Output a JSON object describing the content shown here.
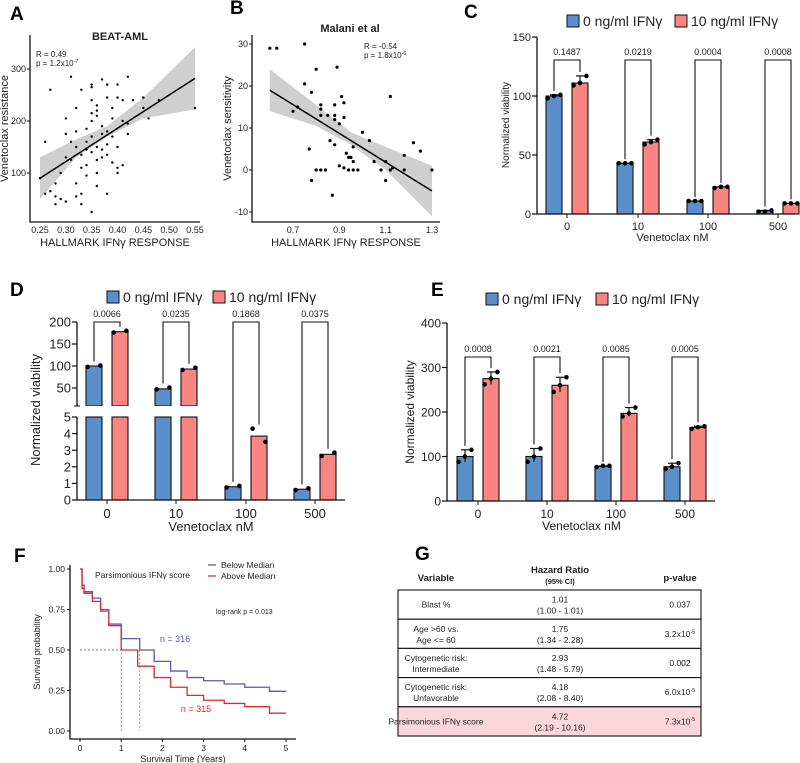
{
  "panels": {
    "A": "A",
    "B": "B",
    "C": "C",
    "D": "D",
    "E": "E",
    "F": "F",
    "G": "G"
  },
  "colors": {
    "blue": "#5b8fcc",
    "red": "#f98583",
    "band": "#cfcfcf",
    "km_blue": "#5a5aaa",
    "km_red": "#dd2b2b",
    "highlight": "#fbd6dd"
  },
  "chart_data": [
    {
      "id": "A",
      "type": "scatter",
      "title": "BEAT-AML",
      "xlabel": "HALLMARK IFNγ  RESPONSE",
      "ylabel": "Venetoclax resistance",
      "annotation": {
        "r": "R = 0.49",
        "p": "p = 1.2x10",
        "p_exp": "-7"
      },
      "xticks": [
        0.25,
        0.3,
        0.35,
        0.4,
        0.45,
        0.5,
        0.55
      ],
      "xtick_labels": [
        "0.25",
        "0.30",
        "0.35",
        "0.40",
        "0.45",
        "0.50",
        "0.55"
      ],
      "yticks": [
        100,
        200,
        300
      ],
      "ytick_labels": [
        "100",
        "200",
        "300"
      ],
      "xlim": [
        0.25,
        0.55
      ],
      "fit": {
        "x": [
          0.25,
          0.55
        ],
        "y": [
          90,
          282
        ]
      },
      "band": {
        "x": [
          0.25,
          0.32,
          0.38,
          0.45,
          0.55
        ],
        "lo": [
          50,
          130,
          170,
          205,
          222
        ],
        "hi": [
          130,
          165,
          190,
          245,
          342
        ]
      },
      "points": [
        [
          0.25,
          90
        ],
        [
          0.26,
          60
        ],
        [
          0.27,
          260
        ],
        [
          0.26,
          160
        ],
        [
          0.27,
          65
        ],
        [
          0.28,
          55
        ],
        [
          0.28,
          80
        ],
        [
          0.29,
          50
        ],
        [
          0.29,
          100
        ],
        [
          0.3,
          130
        ],
        [
          0.3,
          205
        ],
        [
          0.3,
          175
        ],
        [
          0.31,
          125
        ],
        [
          0.31,
          285
        ],
        [
          0.31,
          160
        ],
        [
          0.32,
          180
        ],
        [
          0.32,
          225
        ],
        [
          0.32,
          150
        ],
        [
          0.32,
          80
        ],
        [
          0.33,
          260
        ],
        [
          0.33,
          135
        ],
        [
          0.33,
          60
        ],
        [
          0.33,
          110
        ],
        [
          0.34,
          145
        ],
        [
          0.34,
          160
        ],
        [
          0.34,
          185
        ],
        [
          0.34,
          95
        ],
        [
          0.35,
          270
        ],
        [
          0.35,
          265
        ],
        [
          0.35,
          240
        ],
        [
          0.35,
          215
        ],
        [
          0.35,
          170
        ],
        [
          0.35,
          140
        ],
        [
          0.35,
          200
        ],
        [
          0.36,
          230
        ],
        [
          0.36,
          220
        ],
        [
          0.36,
          150
        ],
        [
          0.36,
          75
        ],
        [
          0.36,
          125
        ],
        [
          0.36,
          210
        ],
        [
          0.37,
          280
        ],
        [
          0.37,
          175
        ],
        [
          0.37,
          145
        ],
        [
          0.37,
          190
        ],
        [
          0.38,
          245
        ],
        [
          0.38,
          155
        ],
        [
          0.38,
          270
        ],
        [
          0.38,
          135
        ],
        [
          0.38,
          180
        ],
        [
          0.39,
          205
        ],
        [
          0.39,
          225
        ],
        [
          0.39,
          120
        ],
        [
          0.39,
          170
        ],
        [
          0.4,
          270
        ],
        [
          0.4,
          245
        ],
        [
          0.4,
          100
        ],
        [
          0.4,
          150
        ],
        [
          0.41,
          240
        ],
        [
          0.41,
          200
        ],
        [
          0.41,
          115
        ],
        [
          0.42,
          285
        ],
        [
          0.42,
          195
        ],
        [
          0.42,
          175
        ],
        [
          0.43,
          240
        ],
        [
          0.45,
          245
        ],
        [
          0.45,
          225
        ],
        [
          0.46,
          205
        ],
        [
          0.48,
          240
        ],
        [
          0.55,
          225
        ],
        [
          0.33,
          40
        ],
        [
          0.35,
          25
        ],
        [
          0.3,
          45
        ],
        [
          0.28,
          40
        ],
        [
          0.38,
          60
        ],
        [
          0.32,
          55
        ],
        [
          0.4,
          110
        ],
        [
          0.37,
          130
        ],
        [
          0.34,
          115
        ],
        [
          0.36,
          100
        ]
      ]
    },
    {
      "id": "B",
      "type": "scatter",
      "title": "Malani et al",
      "xlabel": "HALLMARK IFNγ  RESPONSE",
      "ylabel": "Venetoclax sensitivity",
      "annotation": {
        "r": "R = -0.54",
        "p": "p = 1.8x10",
        "p_exp": "-6"
      },
      "xticks": [
        0.7,
        0.9,
        1.1,
        1.3
      ],
      "xtick_labels": [
        "0.7",
        "0.9",
        "1.1",
        "1.3"
      ],
      "yticks": [
        -10,
        0,
        10,
        20,
        30
      ],
      "ytick_labels": [
        "-10",
        "0",
        "10",
        "20",
        "30"
      ],
      "fit": {
        "x": [
          0.6,
          1.3
        ],
        "y": [
          19,
          -5
        ]
      },
      "band": {
        "x": [
          0.6,
          0.8,
          0.95,
          1.1,
          1.3
        ],
        "lo": [
          14,
          10.5,
          6,
          0,
          -11
        ],
        "hi": [
          24,
          15.5,
          9,
          5.5,
          1
        ]
      },
      "points": [
        [
          0.6,
          29
        ],
        [
          0.63,
          29
        ],
        [
          0.75,
          30
        ],
        [
          0.75,
          20.5
        ],
        [
          0.72,
          15
        ],
        [
          0.7,
          14
        ],
        [
          0.78,
          18.5
        ],
        [
          0.8,
          24
        ],
        [
          0.82,
          15.5
        ],
        [
          0.82,
          14.5
        ],
        [
          0.82,
          13
        ],
        [
          0.85,
          13
        ],
        [
          0.88,
          12
        ],
        [
          0.88,
          13
        ],
        [
          0.88,
          15.5
        ],
        [
          0.89,
          24.5
        ],
        [
          0.9,
          11
        ],
        [
          0.91,
          17.5
        ],
        [
          0.92,
          16
        ],
        [
          0.92,
          12.5
        ],
        [
          0.86,
          7
        ],
        [
          0.88,
          6
        ],
        [
          0.77,
          5
        ],
        [
          0.8,
          0
        ],
        [
          0.82,
          0
        ],
        [
          0.84,
          0
        ],
        [
          0.78,
          -2.5
        ],
        [
          0.87,
          -6
        ],
        [
          0.9,
          1
        ],
        [
          0.92,
          0.5
        ],
        [
          0.94,
          0
        ],
        [
          0.96,
          0
        ],
        [
          0.98,
          0
        ],
        [
          0.94,
          3
        ],
        [
          0.95,
          3
        ],
        [
          0.93,
          4
        ],
        [
          0.96,
          5.5
        ],
        [
          0.96,
          2
        ],
        [
          1.0,
          9
        ],
        [
          1.03,
          7
        ],
        [
          1.05,
          2
        ],
        [
          1.08,
          0
        ],
        [
          1.1,
          2
        ],
        [
          1.1,
          -2.5
        ],
        [
          1.12,
          0
        ],
        [
          1.13,
          0.5
        ],
        [
          1.12,
          17.5
        ],
        [
          1.18,
          0
        ],
        [
          1.18,
          3.5
        ],
        [
          1.22,
          6.5
        ],
        [
          1.25,
          4.5
        ],
        [
          1.3,
          0
        ]
      ]
    },
    {
      "id": "C",
      "type": "bar",
      "xlabel": "Venetoclax nM",
      "ylabel": "Normalized viability",
      "categories": [
        "0",
        "10",
        "100",
        "500"
      ],
      "yticks": [
        0,
        50,
        100,
        150
      ],
      "ytick_labels": [
        "0",
        "50",
        "100",
        "150"
      ],
      "ylim": [
        0,
        150
      ],
      "pvalues": [
        "0.1487",
        "0.0219",
        "0.0004",
        "0.0008"
      ],
      "series": [
        {
          "name": "0 ng/ml IFNγ",
          "values": [
            100,
            43,
            11,
            3
          ],
          "replicates": [
            [
              98,
              100,
              101
            ],
            [
              43,
              43,
              43
            ],
            [
              11,
              11,
              11
            ],
            [
              2,
              2,
              3
            ]
          ]
        },
        {
          "name": "10 ng/ml IFNγ",
          "values": [
            111,
            61,
            23,
            9
          ],
          "replicates": [
            [
              109,
              111,
              117
            ],
            [
              59,
              61,
              63
            ],
            [
              22,
              23,
              23
            ],
            [
              9,
              9,
              9
            ]
          ]
        }
      ]
    },
    {
      "id": "D",
      "type": "bar",
      "xlabel": "Venetoclax nM",
      "ylabel": "Normalized viability",
      "categories": [
        "0",
        "10",
        "100",
        "500"
      ],
      "yticks": [
        0,
        1,
        2,
        3,
        4,
        5,
        50,
        100,
        150,
        200
      ],
      "ytick_labels": [
        "0",
        "1",
        "2",
        "3",
        "4",
        "5",
        "50",
        "100",
        "150",
        "200"
      ],
      "axis_break": [
        5,
        40
      ],
      "pvalues": [
        "0.0066",
        "0.0235",
        "0.1868",
        "0.0375"
      ],
      "series": [
        {
          "name": "0 ng/ml IFNγ",
          "values": [
            100,
            48,
            0.8,
            0.65
          ],
          "replicates": [
            [
              98,
              101
            ],
            [
              47,
              51
            ],
            [
              0.75,
              0.85
            ],
            [
              0.6,
              0.7
            ]
          ]
        },
        {
          "name": "10 ng/ml IFNγ",
          "values": [
            178,
            93,
            3.85,
            2.75
          ],
          "replicates": [
            [
              176,
              180
            ],
            [
              91,
              96
            ],
            [
              4.3,
              3.5
            ],
            [
              2.65,
              2.85
            ]
          ]
        }
      ]
    },
    {
      "id": "E",
      "type": "bar",
      "xlabel": "Venetoclax nM",
      "ylabel": "Normalized viability",
      "categories": [
        "0",
        "10",
        "100",
        "500"
      ],
      "yticks": [
        0,
        100,
        200,
        300,
        400
      ],
      "ytick_labels": [
        "0",
        "100",
        "200",
        "300",
        "400"
      ],
      "ylim": [
        0,
        400
      ],
      "pvalues": [
        "0.0008",
        "0.0021",
        "0.0085",
        "0.0005"
      ],
      "series": [
        {
          "name": "0 ng/ml IFNγ",
          "values": [
            100,
            100,
            78,
            77
          ],
          "replicates": [
            [
              88,
              100,
              115
            ],
            [
              88,
              100,
              118
            ],
            [
              76,
              79,
              79
            ],
            [
              72,
              77,
              85
            ]
          ]
        },
        {
          "name": "10 ng/ml IFNγ",
          "values": [
            275,
            260,
            197,
            165
          ],
          "replicates": [
            [
              262,
              275,
              290
            ],
            [
              245,
              260,
              278
            ],
            [
              190,
              197,
              210
            ],
            [
              162,
              166,
              168
            ]
          ]
        }
      ]
    },
    {
      "id": "F",
      "type": "line",
      "title": "Parsimonious IFNγ score",
      "xlabel": "Survival Time (Years)",
      "ylabel": "Survival probability",
      "xticks": [
        0,
        1,
        2,
        3,
        4,
        5
      ],
      "xtick_labels": [
        "0",
        "1",
        "2",
        "3",
        "4",
        "5"
      ],
      "yticks": [
        0,
        0.25,
        0.5,
        0.75,
        1
      ],
      "ytick_labels": [
        "0.00",
        "0.25",
        "0.50",
        "0.75",
        "1.00"
      ],
      "xlim": [
        0,
        5
      ],
      "ylim": [
        0,
        1
      ],
      "logrank": "log-rank p = 0.013",
      "medians": [
        1.0,
        1.45
      ],
      "series": [
        {
          "name": "Below Median",
          "n_label": "n = 316",
          "x": [
            0,
            0.05,
            0.1,
            0.3,
            0.5,
            0.7,
            1,
            1.45,
            1.8,
            2.2,
            2.6,
            3,
            3.5,
            4,
            4.6,
            5
          ],
          "y": [
            1,
            0.9,
            0.86,
            0.82,
            0.75,
            0.66,
            0.57,
            0.5,
            0.43,
            0.37,
            0.33,
            0.31,
            0.29,
            0.27,
            0.245,
            0.245
          ]
        },
        {
          "name": "Above Median",
          "n_label": "n = 315",
          "x": [
            0,
            0.05,
            0.1,
            0.3,
            0.5,
            0.7,
            1,
            1.4,
            1.8,
            2.2,
            2.6,
            3,
            3.5,
            4,
            4.6,
            5
          ],
          "y": [
            1,
            0.88,
            0.85,
            0.8,
            0.74,
            0.65,
            0.5,
            0.4,
            0.33,
            0.27,
            0.22,
            0.19,
            0.17,
            0.15,
            0.11,
            0.11
          ]
        }
      ]
    }
  ],
  "table": {
    "headers": {
      "variable": "Variable",
      "hr": "Hazard Ratio",
      "hr_sub": "(95% CI)",
      "p": "p-value"
    },
    "rows": [
      {
        "var1": "Blast %",
        "var2": "",
        "hr": "1.01",
        "ci": "(1.00 - 1.01)",
        "p": "0.037",
        "p_exp": ""
      },
      {
        "var1": "Age >60 vs.",
        "var2": "Age <= 60",
        "hr": "1.75",
        "ci": "(1.34 - 2.28)",
        "p": "3.2x10",
        "p_exp": "-5"
      },
      {
        "var1": "Cytogenetic risk:",
        "var2": "Intermediate",
        "hr": "2.93",
        "ci": "(1.48 - 5.79)",
        "p": "0.002",
        "p_exp": ""
      },
      {
        "var1": "Cytogenetic risk:",
        "var2": "Unfavorable",
        "hr": "4.18",
        "ci": "(2.08 - 8.40)",
        "p": "6.0x10",
        "p_exp": "-5"
      },
      {
        "var1": "Parsimonious IFNγ score",
        "var2": "",
        "hr": "4.72",
        "ci": "(2.19 - 10.16)",
        "p": "7.3x10",
        "p_exp": "-5",
        "highlight": true
      }
    ]
  }
}
